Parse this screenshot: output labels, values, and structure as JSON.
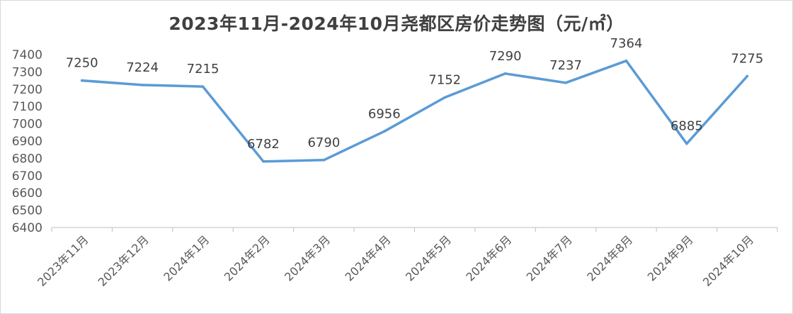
{
  "chart_data": {
    "type": "line",
    "title": "2023年11月-2024年10月尧都区房价走势图（元/㎡）",
    "xlabel": "",
    "ylabel": "",
    "categories": [
      "2023年11月",
      "2023年12月",
      "2024年1月",
      "2024年2月",
      "2024年3月",
      "2024年4月",
      "2024年5月",
      "2024年6月",
      "2024年7月",
      "2024年8月",
      "2024年9月",
      "2024年10月"
    ],
    "series": [
      {
        "values": [
          7250,
          7224,
          7215,
          6782,
          6790,
          6956,
          7152,
          7290,
          7237,
          7364,
          6885,
          7275
        ]
      }
    ],
    "ylim": [
      6400,
      7400
    ],
    "yticks": [
      6400,
      6500,
      6600,
      6700,
      6800,
      6900,
      7000,
      7100,
      7200,
      7300,
      7400
    ],
    "data_labels": true,
    "grid": false,
    "legend": "none",
    "line_color": "#5b9bd5"
  }
}
